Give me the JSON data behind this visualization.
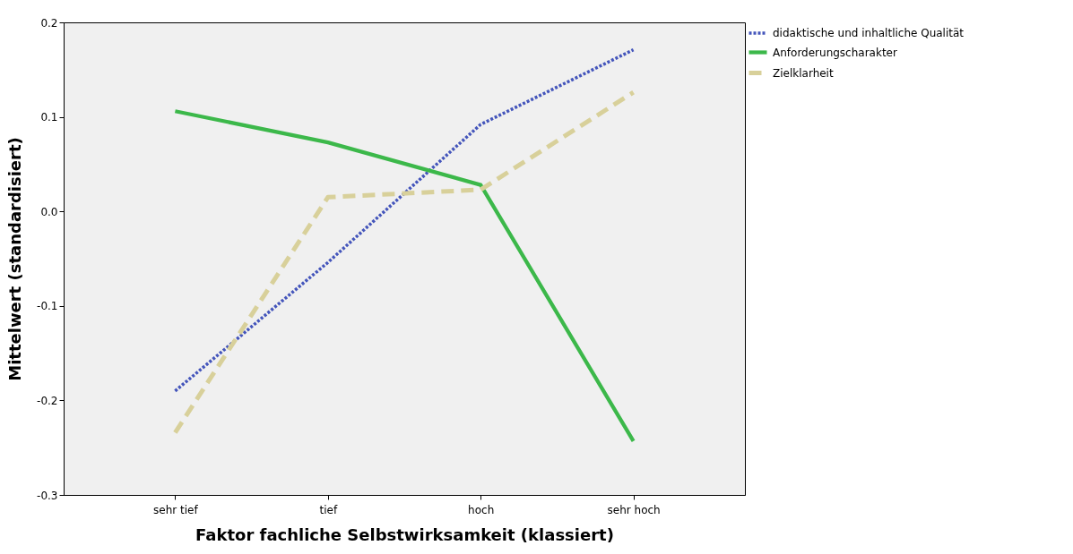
{
  "chart_data": {
    "type": "line",
    "xlabel": "Faktor fachliche Selbstwirksamkeit (klassiert)",
    "ylabel": "Mittelwert (standardisiert)",
    "categories": [
      "sehr tief",
      "tief",
      "hoch",
      "sehr hoch"
    ],
    "series": [
      {
        "name": "didaktische und inhaltliche Qualität",
        "color": "#4455bb",
        "line_style": "dotted",
        "values": [
          -0.19,
          -0.054,
          0.092,
          0.171
        ]
      },
      {
        "name": "Anforderungscharakter",
        "color": "#3cb84a",
        "line_style": "solid",
        "values": [
          0.106,
          0.073,
          0.028,
          -0.243
        ]
      },
      {
        "name": "Zielklarheit",
        "color": "#d8d09a",
        "line_style": "dashed",
        "values": [
          -0.234,
          0.015,
          0.023,
          0.126
        ]
      }
    ],
    "ylim": [
      -0.3,
      0.2
    ],
    "yticks": [
      {
        "value": -0.3,
        "label": "-0.3"
      },
      {
        "value": -0.2,
        "label": "-0.2"
      },
      {
        "value": -0.1,
        "label": "-0.1"
      },
      {
        "value": 0,
        "label": "0.0"
      },
      {
        "value": 0.1,
        "label": "0.1"
      },
      {
        "value": 0.2,
        "label": "0.2"
      }
    ],
    "grid": false,
    "legend": "top right",
    "marker": "none"
  }
}
